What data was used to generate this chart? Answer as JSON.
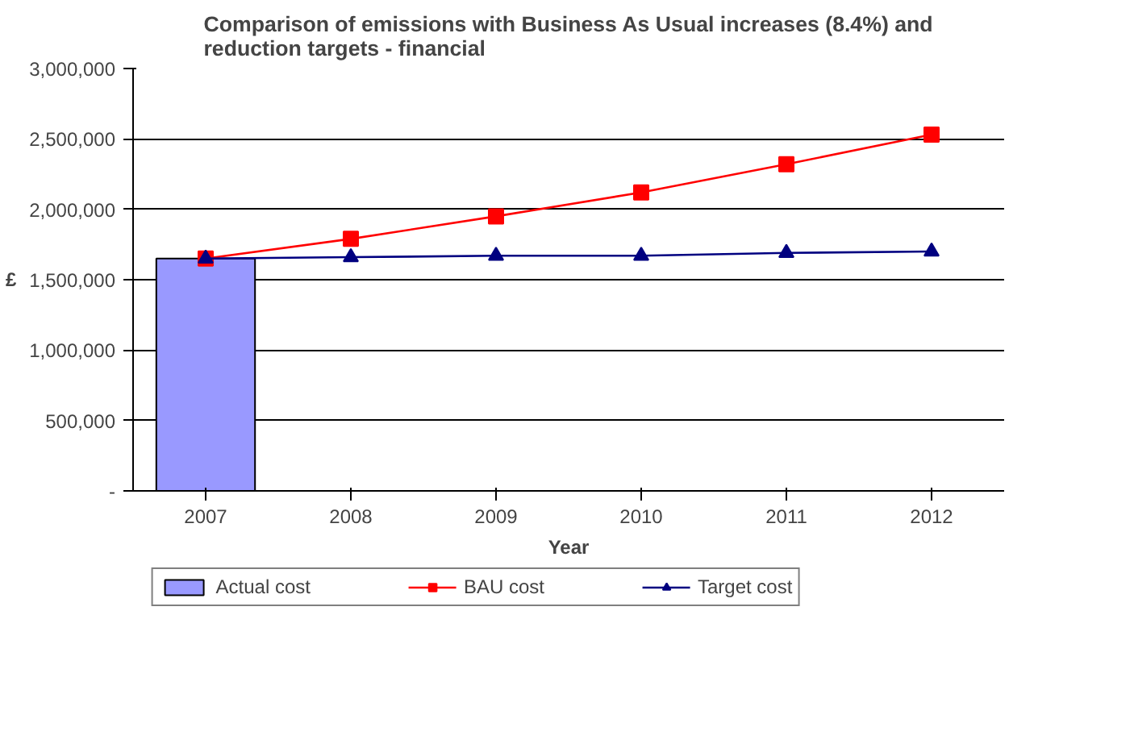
{
  "chart_data": {
    "type": "line",
    "title": "Comparison of emissions with Business As Usual increases (8.4%) and reduction targets - financial",
    "xlabel": "Year",
    "ylabel": "£",
    "categories": [
      "2007",
      "2008",
      "2009",
      "2010",
      "2011",
      "2012"
    ],
    "series": [
      {
        "name": "Actual cost",
        "type": "bar",
        "color": "#9999ff",
        "values": [
          1650000,
          null,
          null,
          null,
          null,
          null
        ]
      },
      {
        "name": "BAU cost",
        "color": "#ff0000",
        "marker": "square",
        "values": [
          1650000,
          1790000,
          1950000,
          2120000,
          2320000,
          2530000
        ]
      },
      {
        "name": "Target cost",
        "color": "#000080",
        "marker": "triangle",
        "values": [
          1650000,
          1660000,
          1670000,
          1670000,
          1690000,
          1700000
        ]
      }
    ],
    "ylim": [
      0,
      3000000
    ],
    "yticks": [
      {
        "value": 0,
        "label": "-"
      },
      {
        "value": 500000,
        "label": "500,000"
      },
      {
        "value": 1000000,
        "label": "1,000,000"
      },
      {
        "value": 1500000,
        "label": "1,500,000"
      },
      {
        "value": 2000000,
        "label": "2,000,000"
      },
      {
        "value": 2500000,
        "label": "2,500,000"
      },
      {
        "value": 3000000,
        "label": "3,000,000"
      }
    ],
    "grid": "y",
    "legend": "bottom"
  }
}
